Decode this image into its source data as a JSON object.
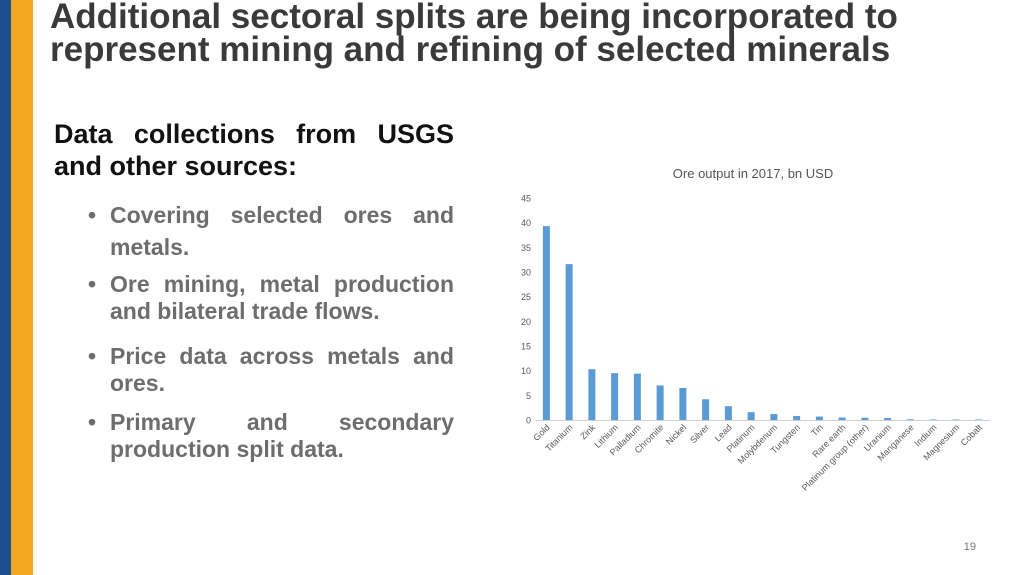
{
  "slide": {
    "title": "Additional sectoral splits are being incorporated to represent mining and refining of selected minerals",
    "subheading": "Data collections from USGS and other sources:",
    "bullets": [
      "Covering selected ores and metals.",
      "Ore mining, metal production and bilateral trade flows.",
      "Price data across metals and ores.",
      "Primary and secondary production split data."
    ],
    "page_number": "19",
    "colors": {
      "left_stripe": "#1f4e8c",
      "accent_stripe": "#f2a622",
      "bar": "#5b9bd5"
    }
  },
  "chart_data": {
    "type": "bar",
    "title": "Ore output in 2017, bn USD",
    "xlabel": "",
    "ylabel": "",
    "ylim": [
      0,
      45
    ],
    "yticks": [
      0,
      5,
      10,
      15,
      20,
      25,
      30,
      35,
      40,
      45
    ],
    "grid": false,
    "legend": "none",
    "categories": [
      "Gold",
      "Titanium",
      "Zink",
      "Lithium",
      "Palladium",
      "Chromite",
      "Nickel",
      "Silver",
      "Lead",
      "Platinum",
      "Molybdenum",
      "Tungsten",
      "Tin",
      "Rare earth",
      "Platinum group (other)",
      "Uranium",
      "Manganese",
      "Indium",
      "Magnesium",
      "Cobalt"
    ],
    "values": [
      39.3,
      31.6,
      10.3,
      9.5,
      9.4,
      7.0,
      6.5,
      4.2,
      2.8,
      1.6,
      1.2,
      0.8,
      0.7,
      0.5,
      0.45,
      0.4,
      0.15,
      0.1,
      0.1,
      0.1
    ]
  }
}
